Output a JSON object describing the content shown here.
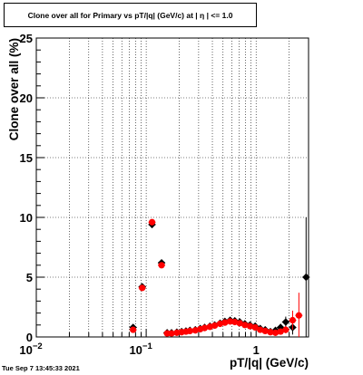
{
  "header": {
    "title": "Clone  over all for Primary vs pT/|q| (GeV/c) at |  η | <= 1.0"
  },
  "footer": {
    "timestamp": "Tue Sep  7 13:45:33 2021"
  },
  "chart_data": {
    "type": "scatter",
    "xlabel": "pT/|q| (GeV/c)",
    "ylabel": "Clone  over all (%)",
    "xscale": "log",
    "xlim": [
      0.01,
      3.0
    ],
    "ylim": [
      0,
      25
    ],
    "grid": true,
    "x_tick_labels": [
      {
        "value": 0.01,
        "base": "10",
        "exp": "−2"
      },
      {
        "value": 0.1,
        "base": "10",
        "exp": "−1"
      },
      {
        "value": 1,
        "base": "1",
        "exp": ""
      }
    ],
    "y_tick_labels": [
      "0",
      "5",
      "10",
      "15",
      "20",
      "25"
    ],
    "series": [
      {
        "color": "#000000",
        "marker": "diamond",
        "points": [
          {
            "x": 0.076,
            "y": 0.8,
            "err": 0.25
          },
          {
            "x": 0.092,
            "y": 4.2,
            "err": 0.25
          },
          {
            "x": 0.113,
            "y": 9.4,
            "err": 0.25
          },
          {
            "x": 0.138,
            "y": 6.2,
            "err": 0.25
          },
          {
            "x": 0.155,
            "y": 0.35,
            "err": 0.1
          },
          {
            "x": 0.17,
            "y": 0.35,
            "err": 0.1
          },
          {
            "x": 0.19,
            "y": 0.4,
            "err": 0.1
          },
          {
            "x": 0.21,
            "y": 0.45,
            "err": 0.1
          },
          {
            "x": 0.23,
            "y": 0.5,
            "err": 0.1
          },
          {
            "x": 0.25,
            "y": 0.55,
            "err": 0.1
          },
          {
            "x": 0.28,
            "y": 0.6,
            "err": 0.1
          },
          {
            "x": 0.31,
            "y": 0.7,
            "err": 0.1
          },
          {
            "x": 0.34,
            "y": 0.8,
            "err": 0.1
          },
          {
            "x": 0.38,
            "y": 0.9,
            "err": 0.1
          },
          {
            "x": 0.42,
            "y": 1.0,
            "err": 0.1
          },
          {
            "x": 0.47,
            "y": 1.15,
            "err": 0.12
          },
          {
            "x": 0.52,
            "y": 1.3,
            "err": 0.12
          },
          {
            "x": 0.58,
            "y": 1.4,
            "err": 0.12
          },
          {
            "x": 0.64,
            "y": 1.35,
            "err": 0.12
          },
          {
            "x": 0.71,
            "y": 1.25,
            "err": 0.13
          },
          {
            "x": 0.79,
            "y": 1.1,
            "err": 0.13
          },
          {
            "x": 0.88,
            "y": 1.0,
            "err": 0.14
          },
          {
            "x": 0.98,
            "y": 0.9,
            "err": 0.15
          },
          {
            "x": 1.09,
            "y": 0.7,
            "err": 0.15
          },
          {
            "x": 1.21,
            "y": 0.6,
            "err": 0.16
          },
          {
            "x": 1.35,
            "y": 0.45,
            "err": 0.17
          },
          {
            "x": 1.5,
            "y": 0.55,
            "err": 0.2
          },
          {
            "x": 1.67,
            "y": 0.8,
            "err": 0.3
          },
          {
            "x": 1.86,
            "y": 1.25,
            "err": 0.45
          },
          {
            "x": 2.15,
            "y": 0.8,
            "err": 0.6
          },
          {
            "x": 2.85,
            "y": 5.0,
            "err": 5.0
          }
        ]
      },
      {
        "color": "#ff0000",
        "marker": "circle",
        "points": [
          {
            "x": 0.076,
            "y": 0.6,
            "err": 0.25
          },
          {
            "x": 0.092,
            "y": 4.1,
            "err": 0.25
          },
          {
            "x": 0.113,
            "y": 9.6,
            "err": 0.25
          },
          {
            "x": 0.138,
            "y": 6.0,
            "err": 0.25
          },
          {
            "x": 0.155,
            "y": 0.3,
            "err": 0.1
          },
          {
            "x": 0.17,
            "y": 0.3,
            "err": 0.1
          },
          {
            "x": 0.19,
            "y": 0.35,
            "err": 0.1
          },
          {
            "x": 0.21,
            "y": 0.4,
            "err": 0.1
          },
          {
            "x": 0.23,
            "y": 0.45,
            "err": 0.1
          },
          {
            "x": 0.25,
            "y": 0.5,
            "err": 0.1
          },
          {
            "x": 0.28,
            "y": 0.55,
            "err": 0.1
          },
          {
            "x": 0.31,
            "y": 0.65,
            "err": 0.1
          },
          {
            "x": 0.34,
            "y": 0.75,
            "err": 0.1
          },
          {
            "x": 0.38,
            "y": 0.85,
            "err": 0.1
          },
          {
            "x": 0.42,
            "y": 0.95,
            "err": 0.1
          },
          {
            "x": 0.47,
            "y": 1.1,
            "err": 0.12
          },
          {
            "x": 0.52,
            "y": 1.2,
            "err": 0.12
          },
          {
            "x": 0.58,
            "y": 1.3,
            "err": 0.12
          },
          {
            "x": 0.64,
            "y": 1.25,
            "err": 0.12
          },
          {
            "x": 0.71,
            "y": 1.15,
            "err": 0.13
          },
          {
            "x": 0.79,
            "y": 1.0,
            "err": 0.13
          },
          {
            "x": 0.88,
            "y": 0.9,
            "err": 0.14
          },
          {
            "x": 0.98,
            "y": 0.8,
            "err": 0.15
          },
          {
            "x": 1.09,
            "y": 0.6,
            "err": 0.15
          },
          {
            "x": 1.21,
            "y": 0.5,
            "err": 0.16
          },
          {
            "x": 1.35,
            "y": 0.4,
            "err": 0.17
          },
          {
            "x": 1.5,
            "y": 0.35,
            "err": 0.2
          },
          {
            "x": 1.67,
            "y": 0.45,
            "err": 0.25
          },
          {
            "x": 1.86,
            "y": 0.6,
            "err": 0.3
          },
          {
            "x": 2.15,
            "y": 1.4,
            "err": 0.8
          },
          {
            "x": 2.45,
            "y": 1.8,
            "err": 1.9
          }
        ]
      }
    ]
  }
}
